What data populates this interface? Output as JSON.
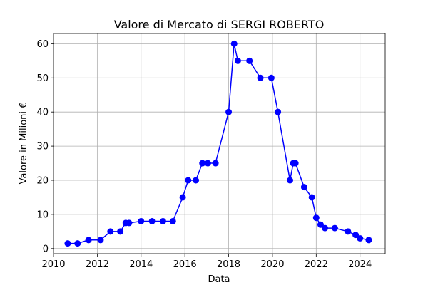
{
  "chart_data": {
    "type": "line",
    "title": "Valore di Mercato di SERGI ROBERTO",
    "xlabel": "Data",
    "ylabel": "Valore in Milioni €",
    "xlim": [
      2010.0,
      2025.15
    ],
    "ylim": [
      -1.5,
      63
    ],
    "x_ticks": [
      2010,
      2012,
      2014,
      2016,
      2018,
      2020,
      2022,
      2024
    ],
    "y_ticks": [
      0,
      10,
      20,
      30,
      40,
      50,
      60
    ],
    "grid": true,
    "line_color": "#0000ff",
    "marker": "circle",
    "series": [
      {
        "x": [
          2010.65,
          2011.1,
          2011.6,
          2012.15,
          2012.6,
          2013.05,
          2013.3,
          2013.45,
          2014.0,
          2014.5,
          2015.0,
          2015.45,
          2015.9,
          2016.15,
          2016.5,
          2016.8,
          2017.05,
          2017.4,
          2018.0,
          2018.25,
          2018.42,
          2018.95,
          2019.45,
          2019.95,
          2020.25,
          2020.8,
          2020.95,
          2021.05,
          2021.45,
          2021.8,
          2022.0,
          2022.2,
          2022.4,
          2022.85,
          2023.45,
          2023.8,
          2024.0,
          2024.4
        ],
        "y": [
          1.5,
          1.5,
          2.5,
          2.5,
          5,
          5,
          7.5,
          7.5,
          8,
          8,
          8,
          8,
          15,
          20,
          20,
          25,
          25,
          25,
          40,
          60,
          55,
          55,
          50,
          50,
          40,
          20,
          25,
          25,
          18,
          15,
          9,
          7,
          6,
          6,
          5,
          4,
          3,
          2.5
        ]
      }
    ]
  }
}
